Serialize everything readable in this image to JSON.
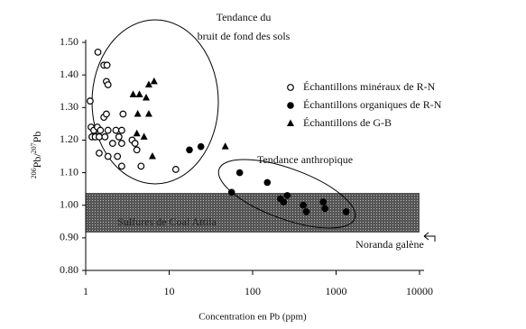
{
  "chart_data": {
    "type": "scatter",
    "annotations": [
      "Tendance du",
      "bruit de fond des sols",
      "Tendance anthropique",
      "Sulfures de Coal Attila",
      "Noranda galène"
    ],
    "x_label": "Concentration en Pb (ppm)",
    "y_label": [
      "206",
      "Pb/",
      "207",
      "Pb"
    ],
    "xscale": "log",
    "xlim": [
      1,
      10000
    ],
    "xticks": [
      1,
      10,
      100,
      1000,
      10000
    ],
    "ylim": [
      0.8,
      1.5
    ],
    "yticks": [
      {
        "value": 0.8,
        "label": "0.80"
      },
      {
        "value": 0.9,
        "label": "0.90"
      },
      {
        "value": 1.0,
        "label": "1.00"
      },
      {
        "value": 1.1,
        "label": "1.10"
      },
      {
        "value": 1.2,
        "label": "1.20"
      },
      {
        "value": 1.3,
        "label": "1.30"
      },
      {
        "value": 1.4,
        "label": "1.40"
      },
      {
        "value": 1.5,
        "label": "1.50"
      }
    ],
    "series": [
      {
        "name": "Échantillons minéraux de R-N",
        "marker": "open-circle",
        "color": "#000000",
        "x": [
          1.4,
          1.65,
          1.8,
          1.77,
          1.85,
          1.13,
          1.16,
          1.25,
          1.38,
          1.5,
          1.65,
          1.77,
          1.19,
          1.3,
          1.45,
          1.7,
          1.85,
          2.1,
          2.3,
          2.5,
          2.7,
          2.7,
          2.4,
          1.85,
          1.45,
          2.8,
          3.6,
          3.9,
          4.1,
          4.6,
          2.7,
          12
        ],
        "values": [
          1.47,
          1.43,
          1.43,
          1.38,
          1.37,
          1.32,
          1.24,
          1.23,
          1.24,
          1.23,
          1.27,
          1.28,
          1.21,
          1.21,
          1.21,
          1.21,
          1.23,
          1.19,
          1.23,
          1.21,
          1.23,
          1.19,
          1.15,
          1.15,
          1.16,
          1.28,
          1.2,
          1.19,
          1.17,
          1.12,
          1.12,
          1.11
        ]
      },
      {
        "name": "Échantillons organiques de R-N",
        "marker": "circle",
        "color": "#000000",
        "x": [
          17.5,
          24,
          70,
          150,
          56,
          215,
          260,
          235,
          405,
          440,
          700,
          735,
          1320
        ],
        "values": [
          1.17,
          1.18,
          1.1,
          1.07,
          1.04,
          1.02,
          1.03,
          1.01,
          1.0,
          0.98,
          1.01,
          0.99,
          0.98
        ]
      },
      {
        "name": "Échantillons de G-B",
        "marker": "triangle",
        "color": "#000000",
        "x": [
          3.7,
          4.4,
          5.3,
          5.7,
          6.6,
          4.2,
          5.7,
          5.0,
          4.1,
          6.3,
          47
        ],
        "values": [
          1.34,
          1.34,
          1.33,
          1.37,
          1.38,
          1.28,
          1.28,
          1.21,
          1.22,
          1.15,
          1.18
        ]
      }
    ]
  }
}
